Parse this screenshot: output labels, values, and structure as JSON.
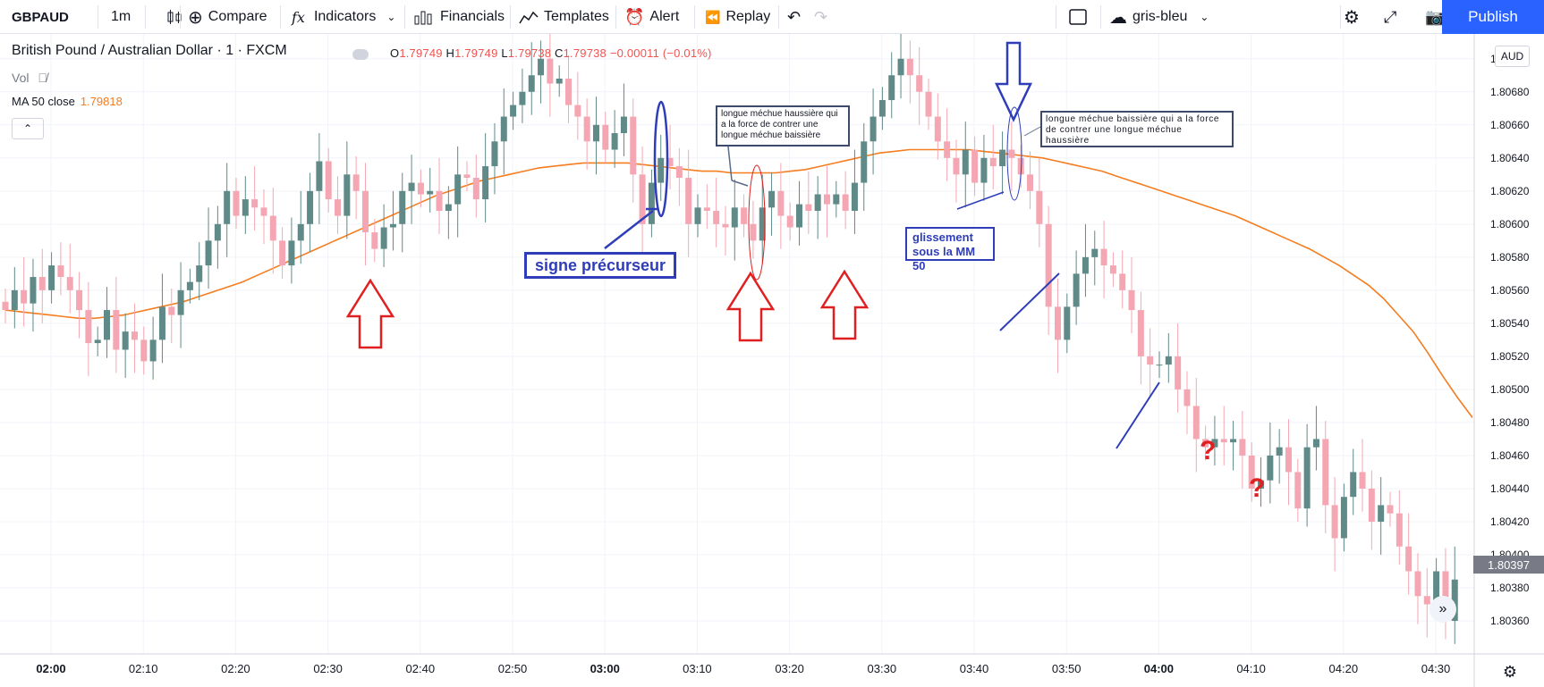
{
  "toolbar": {
    "symbol": "GBPAUD",
    "interval": "1m",
    "compare": "Compare",
    "indicators": "Indicators",
    "financials": "Financials",
    "templates": "Templates",
    "alert": "Alert",
    "replay": "Replay",
    "layout_name": "gris-bleu",
    "publish": "Publish"
  },
  "legend": {
    "title": "British Pound / Australian Dollar · 1 · FXCM",
    "ohlc": {
      "o_label": "O",
      "o": "1.79749",
      "h_label": "H",
      "h": "1.79749",
      "l_label": "L",
      "l": "1.79738",
      "c_label": "C",
      "c": "1.79738",
      "change": "−0.00011 (−0.01%)"
    },
    "vol": "Vol",
    "ma_label": "MA 50 close",
    "ma_value": "1.79818"
  },
  "axis": {
    "currency": "AUD",
    "last_price": "1.80397"
  },
  "annotations": {
    "box1": "longue méchue haussière qui a la force de contrer une longue méchue baissière",
    "box2": "longue méchue baissière qui a la force de contrer une longue méchue haussière",
    "signe": "signe précurseur",
    "gliss": "glissement sous la MM 50",
    "q1": "?",
    "q2": "?"
  },
  "colors": {
    "up": "#5f8a88",
    "down": "#f4a7b3",
    "ma": "#f57c1f",
    "annot_blue": "#2f3db8",
    "annot_red": "#e02020"
  },
  "chart_data": {
    "type": "candlestick",
    "title": "British Pound / Australian Dollar · 1 · FXCM",
    "x_ticks": [
      "02:00",
      "02:10",
      "02:20",
      "02:30",
      "02:40",
      "02:50",
      "03:00",
      "03:10",
      "03:20",
      "03:30",
      "03:40",
      "03:50",
      "04:00",
      "04:10",
      "04:20",
      "04:30"
    ],
    "y_ticks": [
      "1.80700",
      "1.80680",
      "1.80660",
      "1.80640",
      "1.80620",
      "1.80600",
      "1.80580",
      "1.80560",
      "1.80540",
      "1.80520",
      "1.80500",
      "1.80480",
      "1.80460",
      "1.80440",
      "1.80420",
      "1.80400",
      "1.80380",
      "1.80360"
    ],
    "ylim": [
      1.8034,
      1.80715
    ],
    "close": [
      1.80548,
      1.8056,
      1.80552,
      1.80568,
      1.8056,
      1.80575,
      1.80568,
      1.8056,
      1.80548,
      1.80528,
      1.8053,
      1.80548,
      1.80524,
      1.80535,
      1.8053,
      1.80517,
      1.8053,
      1.8055,
      1.80545,
      1.8056,
      1.80565,
      1.80575,
      1.8059,
      1.806,
      1.8062,
      1.80605,
      1.80615,
      1.8061,
      1.80605,
      1.8059,
      1.80575,
      1.8059,
      1.806,
      1.8062,
      1.80638,
      1.80615,
      1.80605,
      1.8063,
      1.8062,
      1.80595,
      1.80585,
      1.80598,
      1.806,
      1.8062,
      1.80625,
      1.80618,
      1.8062,
      1.80608,
      1.80612,
      1.8063,
      1.80628,
      1.80615,
      1.80635,
      1.8065,
      1.80665,
      1.80672,
      1.8068,
      1.8069,
      1.807,
      1.80685,
      1.80688,
      1.80672,
      1.80665,
      1.8065,
      1.8066,
      1.80645,
      1.80655,
      1.80665,
      1.8063,
      1.806,
      1.80625,
      1.8064,
      1.80635,
      1.80628,
      1.806,
      1.8061,
      1.80608,
      1.806,
      1.80598,
      1.8061,
      1.806,
      1.8059,
      1.8061,
      1.8062,
      1.80605,
      1.80598,
      1.80612,
      1.80608,
      1.80618,
      1.80612,
      1.80618,
      1.80608,
      1.80625,
      1.8065,
      1.80665,
      1.80675,
      1.8069,
      1.807,
      1.8069,
      1.8068,
      1.80665,
      1.8065,
      1.8064,
      1.8063,
      1.80645,
      1.80625,
      1.8064,
      1.80635,
      1.80645,
      1.8064,
      1.8063,
      1.8062,
      1.806,
      1.8055,
      1.8053,
      1.8055,
      1.8057,
      1.8058,
      1.80585,
      1.80575,
      1.8057,
      1.8056,
      1.80548,
      1.8052,
      1.80515,
      1.80515,
      1.8052,
      1.805,
      1.8049,
      1.8047,
      1.80465,
      1.8047,
      1.80468,
      1.8047,
      1.8046,
      1.8044,
      1.80445,
      1.8046,
      1.80465,
      1.8045,
      1.80428,
      1.80465,
      1.8047,
      1.8043,
      1.8041,
      1.80435,
      1.8045,
      1.8044,
      1.8042,
      1.8043,
      1.80425,
      1.80405,
      1.8039,
      1.80375,
      1.8037,
      1.8039,
      1.8036,
      1.80385
    ],
    "ma_close": [
      1.80548,
      1.80547,
      1.80546,
      1.80545,
      1.80544,
      1.80543,
      1.80543,
      1.80544,
      1.80545,
      1.80547,
      1.80549,
      1.80551,
      1.80553,
      1.80556,
      1.80559,
      1.80562,
      1.80565,
      1.80569,
      1.80573,
      1.80577,
      1.80581,
      1.80585,
      1.80589,
      1.80593,
      1.80597,
      1.80601,
      1.80605,
      1.80609,
      1.80613,
      1.80617,
      1.8062,
      1.80623,
      1.80626,
      1.80628,
      1.8063,
      1.80632,
      1.80634,
      1.80635,
      1.80636,
      1.80637,
      1.80637,
      1.80637,
      1.80637,
      1.80636,
      1.80635,
      1.80634,
      1.80633,
      1.80632,
      1.80632,
      1.80631,
      1.80631,
      1.80631,
      1.80631,
      1.80632,
      1.80633,
      1.80635,
      1.80637,
      1.80639,
      1.80641,
      1.80643,
      1.80644,
      1.80645,
      1.80645,
      1.80645,
      1.80645,
      1.80645,
      1.80644,
      1.80643,
      1.80642,
      1.80641,
      1.8064,
      1.80638,
      1.80636,
      1.80634,
      1.80632,
      1.80629,
      1.80626,
      1.80623,
      1.8062,
      1.80617,
      1.80614,
      1.80611,
      1.80608,
      1.80605,
      1.80601,
      1.80597,
      1.80593,
      1.80589,
      1.80585,
      1.8058,
      1.80575,
      1.80569,
      1.80563,
      1.80555,
      1.80545,
      1.80535,
      1.80522,
      1.80508,
      1.80495,
      1.80483
    ]
  }
}
